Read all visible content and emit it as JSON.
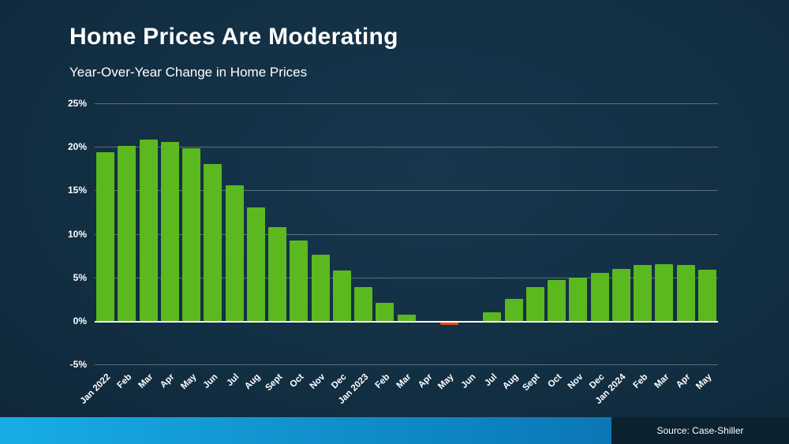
{
  "header": {
    "title": "Home Prices Are Moderating",
    "subtitle": "Year-Over-Year Change in Home Prices"
  },
  "footer": {
    "source": "Source: Case-Shiller"
  },
  "chart_data": {
    "type": "bar",
    "title": "Home Prices Are Moderating",
    "subtitle": "Year-Over-Year Change in Home Prices",
    "xlabel": "",
    "ylabel": "Year-over-year change in home prices (%)",
    "ylim": [
      -5,
      25
    ],
    "yticks": [
      -5,
      0,
      5,
      10,
      15,
      20,
      25
    ],
    "ytick_labels": [
      "-5%",
      "0%",
      "5%",
      "10%",
      "15%",
      "20%",
      "25%"
    ],
    "grid": true,
    "legend": false,
    "bar_color_positive": "#5cb81f",
    "bar_color_negative": "#e8491d",
    "categories": [
      "Jan 2022",
      "Feb",
      "Mar",
      "Apr",
      "May",
      "Jun",
      "Jul",
      "Aug",
      "Sept",
      "Oct",
      "Nov",
      "Dec",
      "Jan 2023",
      "Feb",
      "Mar",
      "Apr",
      "May",
      "Jun",
      "Jul",
      "Aug",
      "Sept",
      "Oct",
      "Nov",
      "Dec",
      "Jan 2024",
      "Feb",
      "Mar",
      "Apr",
      "May"
    ],
    "values": [
      19.4,
      20.1,
      20.8,
      20.6,
      19.8,
      18.0,
      15.6,
      13.0,
      10.8,
      9.2,
      7.6,
      5.8,
      3.9,
      2.1,
      0.7,
      0.0,
      -0.5,
      0.0,
      1.0,
      2.5,
      3.9,
      4.7,
      5.0,
      5.5,
      6.0,
      6.4,
      6.5,
      6.4,
      5.9
    ]
  }
}
